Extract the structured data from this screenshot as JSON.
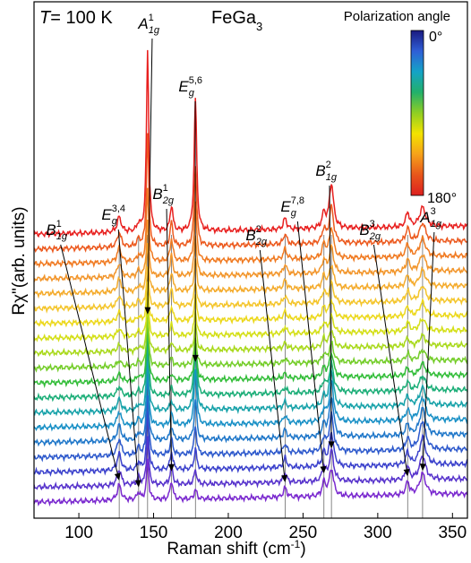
{
  "chart_data": {
    "type": "line",
    "temperature": {
      "symbol": "T",
      "value": "= 100 K"
    },
    "compound": {
      "base": "FeGa",
      "subscript": "3"
    },
    "xlabel": {
      "text": "Raman shift (cm",
      "sup": "-1",
      "tail": ")"
    },
    "ylabel": {
      "text": "Rχ\"(arb. units)"
    },
    "xlim": [
      70,
      360
    ],
    "x_ticks": [
      100,
      150,
      200,
      250,
      300,
      350
    ],
    "grid": false,
    "legend": {
      "type": "colorbar",
      "title": "Polarization angle",
      "top_label": "0°",
      "bottom_label": "180°",
      "placement": "top-right",
      "colors": [
        "#1a1a80",
        "#2f5fd6",
        "#14a3c7",
        "#22b06a",
        "#8fce23",
        "#f3e300",
        "#f6a21a",
        "#e8561b",
        "#dd1f1f"
      ]
    },
    "series_count": 19,
    "series_colors": [
      "#e8201f",
      "#ec5a1f",
      "#f07a21",
      "#f2952a",
      "#f4ab2c",
      "#f4c52b",
      "#ecd81b",
      "#d4df16",
      "#a9d91b",
      "#74cd29",
      "#32bd38",
      "#1cae78",
      "#17a2a9",
      "#1990c6",
      "#1f77c9",
      "#2d59cc",
      "#3b41cc",
      "#5733cc",
      "#7a29cf"
    ],
    "spectra": {
      "x_start": 70,
      "x_end": 360,
      "baseline_slope_per_100cm": 0.35,
      "noise_amplitude": 0.35
    },
    "peaks": [
      {
        "x": 127,
        "width": 1.6,
        "heights": [
          1.9,
          1.8,
          1.8,
          1.7,
          1.6,
          1.4,
          1.2,
          1.0,
          0.8,
          0.7,
          0.9,
          1.2,
          1.5,
          1.8,
          2.0,
          2.1,
          2.1,
          2.0,
          1.9
        ]
      },
      {
        "x": 140,
        "width": 1.3,
        "heights": [
          0.9,
          0.9,
          0.8,
          0.8,
          0.7,
          0.7,
          0.6,
          0.6,
          0.5,
          0.5,
          0.6,
          0.6,
          0.7,
          0.8,
          0.9,
          1.0,
          1.0,
          1.0,
          0.9
        ]
      },
      {
        "x": 146,
        "width": 0.9,
        "heights": [
          22.5,
          14.0,
          9.0,
          7.0,
          6.0,
          5.0,
          4.8,
          4.8,
          5.2,
          6.0,
          7.0,
          8.0,
          8.0,
          8.0,
          8.0,
          7.5,
          7.0,
          6.0,
          5.0
        ]
      },
      {
        "x": 162,
        "width": 1.1,
        "heights": [
          3.2,
          3.0,
          2.8,
          2.6,
          2.4,
          2.1,
          1.8,
          1.4,
          1.1,
          0.9,
          0.8,
          0.9,
          1.1,
          1.4,
          1.7,
          2.0,
          2.2,
          2.3,
          2.3
        ]
      },
      {
        "x": 178,
        "width": 1.0,
        "heights": [
          16.5,
          10.0,
          7.0,
          5.0,
          4.0,
          3.0,
          3.0,
          3.0,
          3.2,
          3.5,
          5.0,
          7.0,
          8.0,
          7.0,
          5.0,
          3.5,
          2.5,
          1.8,
          1.2
        ]
      },
      {
        "x": 238,
        "width": 1.3,
        "heights": [
          1.4,
          1.3,
          1.3,
          1.2,
          1.1,
          1.0,
          0.9,
          0.8,
          0.7,
          0.6,
          0.6,
          0.7,
          0.8,
          0.9,
          1.0,
          1.1,
          1.2,
          1.2,
          1.2
        ]
      },
      {
        "x": 264,
        "width": 1.4,
        "heights": [
          1.8,
          1.7,
          1.7,
          1.6,
          1.5,
          1.4,
          1.3,
          1.2,
          1.1,
          1.0,
          1.1,
          1.2,
          1.3,
          1.4,
          1.5,
          1.6,
          1.7,
          1.7,
          1.7
        ]
      },
      {
        "x": 269,
        "width": 1.7,
        "heights": [
          5.5,
          4.5,
          3.8,
          3.2,
          2.8,
          2.4,
          2.2,
          2.0,
          2.2,
          2.4,
          3.0,
          3.6,
          4.6,
          5.0,
          5.0,
          4.6,
          4.2,
          3.8,
          3.4
        ]
      },
      {
        "x": 320,
        "width": 1.4,
        "heights": [
          1.8,
          1.7,
          1.6,
          1.5,
          1.4,
          1.3,
          1.2,
          1.1,
          1.0,
          0.9,
          1.0,
          1.1,
          1.2,
          1.3,
          1.4,
          1.5,
          1.6,
          1.6,
          1.6
        ]
      },
      {
        "x": 330,
        "width": 2.4,
        "heights": [
          2.4,
          2.3,
          2.2,
          2.1,
          2.0,
          1.9,
          1.7,
          1.5,
          1.3,
          1.3,
          1.5,
          1.8,
          2.2,
          2.8,
          3.3,
          3.6,
          3.4,
          3.0,
          2.6
        ]
      }
    ],
    "guide_lines_x": [
      127,
      140,
      146,
      162,
      178,
      238,
      264,
      269,
      320,
      330
    ],
    "annotations": [
      {
        "base": "A",
        "sub": "1g",
        "sup": "1",
        "peak_x": 146,
        "anchor_x": 178,
        "anchor_y": 32
      },
      {
        "base": "E",
        "sub": "g",
        "sup": "5,6",
        "peak_x": 178,
        "anchor_x": 226,
        "anchor_y": 102
      },
      {
        "base": "B",
        "sub": "2g",
        "sup": "1",
        "peak_x": 162,
        "anchor_x": 194,
        "anchor_y": 222
      },
      {
        "base": "E",
        "sub": "g",
        "sup": "3,4",
        "peak_x": 140,
        "anchor_x": 140,
        "anchor_y": 245
      },
      {
        "base": "B",
        "sub": "1g",
        "sup": "1",
        "peak_x": 127,
        "anchor_x": 75,
        "anchor_y": 262
      },
      {
        "base": "B",
        "sub": "2g",
        "sup": "2",
        "peak_x": 238,
        "anchor_x": 298,
        "anchor_y": 268
      },
      {
        "base": "E",
        "sub": "g",
        "sup": "7,8",
        "peak_x": 264,
        "anchor_x": 340,
        "anchor_y": 236
      },
      {
        "base": "B",
        "sub": "1g",
        "sup": "2",
        "peak_x": 269,
        "anchor_x": 376,
        "anchor_y": 196
      },
      {
        "base": "B",
        "sub": "2g",
        "sup": "3",
        "peak_x": 320,
        "anchor_x": 425,
        "anchor_y": 262
      },
      {
        "base": "A",
        "sub": "1g",
        "sup": "3",
        "peak_x": 330,
        "anchor_x": 493,
        "anchor_y": 248
      }
    ]
  }
}
